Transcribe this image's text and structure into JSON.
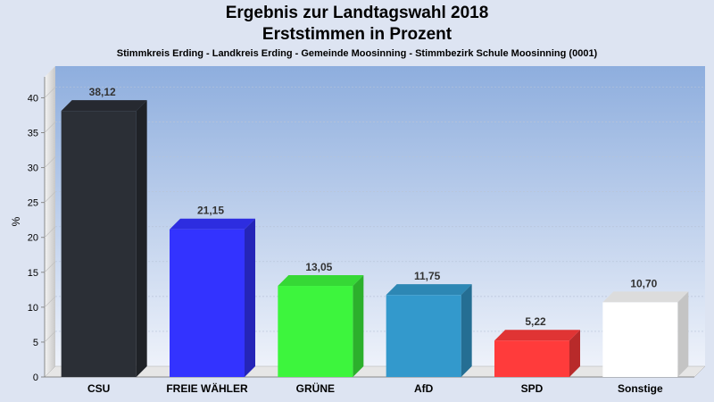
{
  "chart_data": {
    "type": "bar",
    "title": "Ergebnis zur Landtagswahl 2018",
    "subtitle": "Erststimmen in Prozent",
    "caption": "Stimmkreis Erding - Landkreis Erding - Gemeinde Moosinning - Stimmbezirk Schule Moosinning (0001)",
    "ylabel": "%",
    "xlabel": "",
    "ylim": [
      0,
      43
    ],
    "yticks": [
      0,
      5,
      10,
      15,
      20,
      25,
      30,
      35,
      40
    ],
    "grid": true,
    "categories": [
      "CSU",
      "FREIE WÄHLER",
      "GRÜNE",
      "AfD",
      "SPD",
      "Sonstige"
    ],
    "values": [
      38.12,
      21.15,
      13.05,
      11.75,
      5.22,
      10.7
    ],
    "value_labels": [
      "38,12",
      "21,15",
      "13,05",
      "11,75",
      "5,22",
      "10,70"
    ],
    "colors": [
      "#2b2f36",
      "#3333ff",
      "#3df53d",
      "#3399cc",
      "#ff3b3b",
      "#ffffff"
    ]
  }
}
